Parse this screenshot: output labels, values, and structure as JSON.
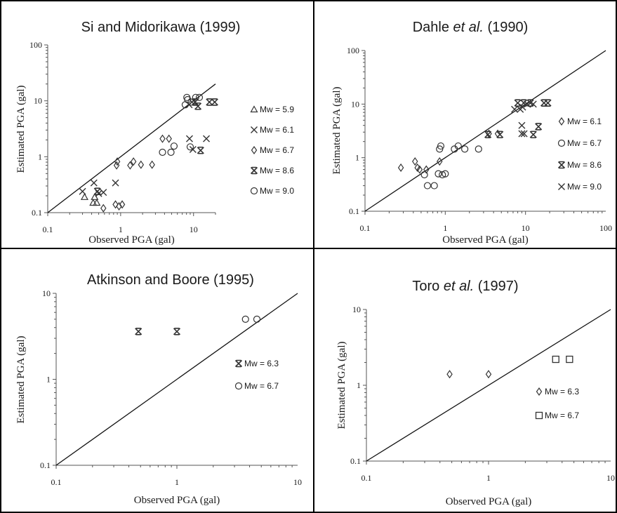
{
  "chart_data": [
    {
      "type": "scatter",
      "title": "Si and Midorikawa (1999)",
      "xlabel": "Observed PGA (gal)",
      "ylabel": "Estimated PGA (gal)",
      "xscale": "log",
      "yscale": "log",
      "xlim": [
        0.1,
        20
      ],
      "ylim": [
        0.1,
        100
      ],
      "xticks": [
        "0.1",
        "1",
        "10"
      ],
      "yticks": [
        "0.1",
        "1",
        "10",
        "100"
      ],
      "reference_line": "y = x",
      "legend_position": "right",
      "series": [
        {
          "name": "Mw = 5.9",
          "marker": "triangle",
          "points": [
            [
              0.32,
              0.19
            ],
            [
              0.42,
              0.15
            ],
            [
              0.44,
              0.19
            ],
            [
              0.47,
              0.15
            ]
          ]
        },
        {
          "name": "Mw = 6.1",
          "marker": "x",
          "points": [
            [
              0.3,
              0.24
            ],
            [
              0.43,
              0.34
            ],
            [
              0.5,
              0.22
            ],
            [
              0.58,
              0.23
            ],
            [
              0.85,
              0.34
            ],
            [
              8.7,
              8.5
            ],
            [
              8.8,
              2.1
            ],
            [
              9.5,
              9.5
            ],
            [
              9.8,
              1.35
            ],
            [
              15,
              2.1
            ]
          ]
        },
        {
          "name": "Mw = 6.7",
          "marker": "diamond",
          "points": [
            [
              0.58,
              0.12
            ],
            [
              0.85,
              0.14
            ],
            [
              0.88,
              0.7
            ],
            [
              0.9,
              0.82
            ],
            [
              0.95,
              0.13
            ],
            [
              1.05,
              0.14
            ],
            [
              1.35,
              0.7
            ],
            [
              1.5,
              0.82
            ],
            [
              1.9,
              0.72
            ],
            [
              2.7,
              0.72
            ],
            [
              3.75,
              2.1
            ],
            [
              4.6,
              2.1
            ]
          ]
        },
        {
          "name": "Mw = 8.6",
          "marker": "asterisk",
          "points": [
            [
              0.48,
              0.24
            ],
            [
              10.5,
              9.5
            ],
            [
              11.5,
              8
            ],
            [
              12.5,
              1.3
            ],
            [
              16.5,
              9.5
            ],
            [
              19.5,
              9.5
            ]
          ]
        },
        {
          "name": "Mw = 9.0",
          "marker": "circle",
          "points": [
            [
              3.75,
              1.2
            ],
            [
              4.9,
              1.2
            ],
            [
              5.4,
              1.55
            ],
            [
              7.7,
              8.5
            ],
            [
              8.1,
              11.5
            ],
            [
              8.3,
              10.5
            ],
            [
              9.0,
              1.5
            ],
            [
              9.3,
              9.5
            ],
            [
              10.7,
              11.5
            ],
            [
              12,
              11.5
            ]
          ]
        }
      ]
    },
    {
      "type": "scatter",
      "title_parts": [
        "Dahle ",
        "et al.",
        " (1990)"
      ],
      "xlabel": "Observed PGA (gal)",
      "ylabel": "Estimated PGA (gal)",
      "xscale": "log",
      "yscale": "log",
      "xlim": [
        0.1,
        100
      ],
      "ylim": [
        0.1,
        100
      ],
      "xticks": [
        "0.1",
        "1",
        "10",
        "100"
      ],
      "yticks": [
        "0.1",
        "1",
        "10",
        "100"
      ],
      "reference_line": "y = x",
      "legend_position": "right",
      "series": [
        {
          "name": "Mw = 6.1",
          "marker": "diamond",
          "points": [
            [
              0.28,
              0.65
            ],
            [
              0.42,
              0.85
            ],
            [
              0.45,
              0.65
            ],
            [
              0.48,
              0.6
            ],
            [
              0.58,
              0.6
            ],
            [
              0.85,
              0.85
            ],
            [
              3.5,
              2.8
            ],
            [
              4.5,
              2.8
            ]
          ]
        },
        {
          "name": "Mw = 6.7",
          "marker": "circle",
          "points": [
            [
              0.55,
              0.48
            ],
            [
              0.6,
              0.3
            ],
            [
              0.73,
              0.3
            ],
            [
              0.82,
              0.5
            ],
            [
              0.85,
              1.45
            ],
            [
              0.88,
              1.65
            ],
            [
              0.92,
              0.48
            ],
            [
              1.0,
              0.5
            ],
            [
              1.3,
              1.45
            ],
            [
              1.45,
              1.65
            ],
            [
              1.75,
              1.45
            ],
            [
              2.6,
              1.45
            ]
          ]
        },
        {
          "name": "Mw = 8.6",
          "marker": "asterisk",
          "points": [
            [
              3.4,
              2.7
            ],
            [
              4.8,
              2.7
            ],
            [
              8.0,
              10.5
            ],
            [
              9.5,
              10.5
            ],
            [
              11.5,
              10.5
            ],
            [
              12.5,
              2.7
            ],
            [
              14.5,
              3.8
            ],
            [
              17,
              10.5
            ],
            [
              19,
              10.5
            ]
          ]
        },
        {
          "name": "Mw = 9.0",
          "marker": "x",
          "points": [
            [
              7.3,
              8
            ],
            [
              8.6,
              8
            ],
            [
              9.0,
              2.8
            ],
            [
              9.0,
              4.0
            ],
            [
              9.2,
              8.8
            ],
            [
              9.6,
              2.8
            ],
            [
              10.5,
              10
            ],
            [
              12.5,
              10
            ]
          ]
        }
      ]
    },
    {
      "type": "scatter",
      "title": "Atkinson and Boore (1995)",
      "xlabel": "Observed PGA (gal)",
      "ylabel": "Estimated PGA (gal)",
      "xscale": "log",
      "yscale": "log",
      "xlim": [
        0.1,
        10
      ],
      "ylim": [
        0.1,
        10
      ],
      "xticks": [
        "0.1",
        "1",
        "10"
      ],
      "yticks": [
        "0.1",
        "1",
        "10"
      ],
      "reference_line": "y = x",
      "legend_position": "right",
      "series": [
        {
          "name": "Mw = 6.3",
          "marker": "asterisk",
          "points": [
            [
              0.48,
              3.6
            ],
            [
              1.0,
              3.6
            ]
          ]
        },
        {
          "name": "Mw = 6.7",
          "marker": "circle",
          "points": [
            [
              3.7,
              5.0
            ],
            [
              4.6,
              5.0
            ]
          ]
        }
      ]
    },
    {
      "type": "scatter",
      "title_parts": [
        "Toro ",
        "et al.",
        " (1997)"
      ],
      "xlabel": "Observed PGA (gal)",
      "ylabel": "Estimated PGA (gal)",
      "xscale": "log",
      "yscale": "log",
      "xlim": [
        0.1,
        10
      ],
      "ylim": [
        0.1,
        10
      ],
      "xticks": [
        "0.1",
        "1",
        "10"
      ],
      "yticks": [
        "0.1",
        "1",
        "10"
      ],
      "reference_line": "y = x",
      "legend_position": "right",
      "series": [
        {
          "name": "Mw = 6.3",
          "marker": "diamond",
          "points": [
            [
              0.48,
              1.4
            ],
            [
              1.0,
              1.4
            ]
          ]
        },
        {
          "name": "Mw = 6.7",
          "marker": "square",
          "points": [
            [
              3.55,
              2.2
            ],
            [
              4.6,
              2.2
            ]
          ]
        }
      ]
    }
  ]
}
